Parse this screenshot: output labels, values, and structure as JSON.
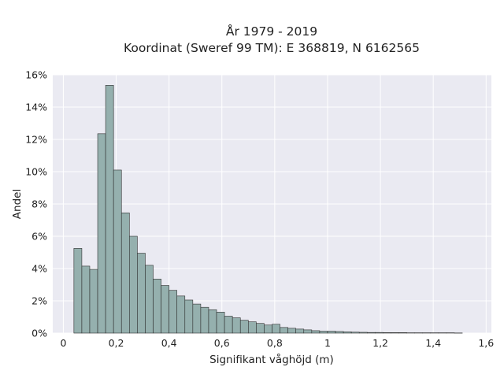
{
  "chart_data": {
    "type": "bar",
    "title": "År 1979 - 2019",
    "subtitle": "Koordinat (Sweref 99 TM): E 368819, N 6162565",
    "xlabel": "Signifikant våghöjd (m)",
    "ylabel": "Andel",
    "xlim": [
      -0.04,
      1.62
    ],
    "ylim": [
      0,
      0.16
    ],
    "x_ticks": [
      0,
      0.2,
      0.4,
      0.6,
      0.8,
      1.0,
      1.2,
      1.4,
      1.6
    ],
    "x_tick_labels": [
      "0",
      "0,2",
      "0,4",
      "0,6",
      "0,8",
      "1",
      "1,2",
      "1,4",
      "1,6"
    ],
    "y_ticks": [
      0,
      0.02,
      0.04,
      0.06,
      0.08,
      0.1,
      0.12,
      0.14,
      0.16
    ],
    "y_tick_labels": [
      "0%",
      "2%",
      "4%",
      "6%",
      "8%",
      "10%",
      "12%",
      "14%",
      "16%"
    ],
    "grid": true,
    "bin_width": 0.03,
    "bin_starts": [
      0.04,
      0.07,
      0.1,
      0.13,
      0.16,
      0.19,
      0.22,
      0.25,
      0.28,
      0.31,
      0.34,
      0.37,
      0.4,
      0.43,
      0.46,
      0.49,
      0.52,
      0.55,
      0.58,
      0.61,
      0.64,
      0.67,
      0.7,
      0.73,
      0.76,
      0.79,
      0.82,
      0.85,
      0.88,
      0.91,
      0.94,
      0.97,
      1.0,
      1.03,
      1.06,
      1.09,
      1.12,
      1.15,
      1.18,
      1.21,
      1.24,
      1.27,
      1.3,
      1.33,
      1.36,
      1.39,
      1.42,
      1.45,
      1.48
    ],
    "values": [
      0.0525,
      0.0415,
      0.0395,
      0.1235,
      0.1535,
      0.101,
      0.0745,
      0.06,
      0.0495,
      0.042,
      0.0335,
      0.0295,
      0.0265,
      0.023,
      0.0205,
      0.018,
      0.016,
      0.0145,
      0.013,
      0.0105,
      0.0095,
      0.008,
      0.007,
      0.006,
      0.005,
      0.0055,
      0.0035,
      0.003,
      0.0025,
      0.002,
      0.0015,
      0.0012,
      0.0012,
      0.001,
      0.0008,
      0.0006,
      0.0005,
      0.0004,
      0.0004,
      0.0003,
      0.0003,
      0.0003,
      0.0002,
      0.0002,
      0.0002,
      0.0002,
      0.0002,
      0.0002,
      0.0001
    ],
    "colors": {
      "plot_background": "#eaeaf2",
      "grid": "#ffffff",
      "bar_fill": "#95b0ae",
      "bar_edge": "#2f2f2f"
    }
  }
}
